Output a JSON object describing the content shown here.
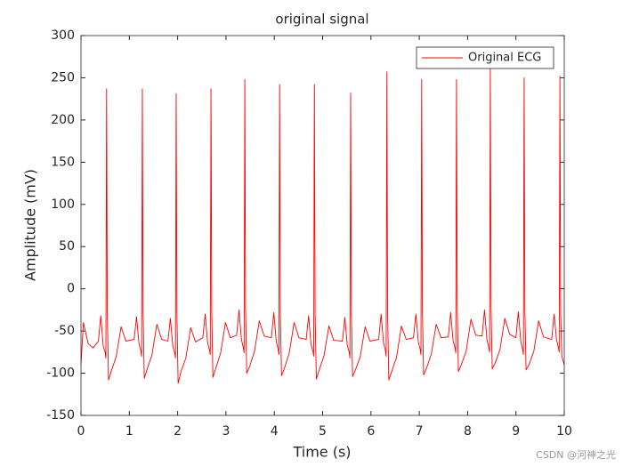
{
  "chart_data": {
    "type": "line",
    "title": "original signal",
    "xlabel": "Time (s)",
    "ylabel": "Amplitude (mV)",
    "x": [
      0,
      0.05,
      0.15,
      0.25,
      0.36,
      0.41,
      0.46,
      0.5,
      0.515,
      0.53,
      0.545,
      0.57,
      0.63,
      0.73,
      0.83,
      0.93,
      1.1,
      1.15,
      1.2,
      1.24,
      1.255,
      1.27,
      1.285,
      1.31,
      1.37,
      1.47,
      1.57,
      1.67,
      1.8,
      1.85,
      1.9,
      1.94,
      1.955,
      1.97,
      1.985,
      2.01,
      2.07,
      2.17,
      2.27,
      2.37,
      2.52,
      2.57,
      2.62,
      2.66,
      2.675,
      2.69,
      2.705,
      2.73,
      2.79,
      2.89,
      2.99,
      3.09,
      3.22,
      3.27,
      3.32,
      3.36,
      3.375,
      3.39,
      3.405,
      3.43,
      3.49,
      3.59,
      3.69,
      3.79,
      3.94,
      3.99,
      4.04,
      4.08,
      4.095,
      4.11,
      4.125,
      4.15,
      4.21,
      4.31,
      4.41,
      4.51,
      4.66,
      4.71,
      4.76,
      4.8,
      4.815,
      4.83,
      4.845,
      4.87,
      4.93,
      5.03,
      5.13,
      5.23,
      5.41,
      5.46,
      5.51,
      5.55,
      5.565,
      5.58,
      5.595,
      5.62,
      5.68,
      5.78,
      5.88,
      5.98,
      6.16,
      6.21,
      6.26,
      6.3,
      6.315,
      6.33,
      6.345,
      6.37,
      6.43,
      6.53,
      6.63,
      6.73,
      6.88,
      6.93,
      6.98,
      7.02,
      7.035,
      7.05,
      7.065,
      7.09,
      7.15,
      7.25,
      7.35,
      7.45,
      7.6,
      7.65,
      7.7,
      7.74,
      7.755,
      7.77,
      7.785,
      7.81,
      7.87,
      7.97,
      8.07,
      8.17,
      8.3,
      8.35,
      8.4,
      8.44,
      8.455,
      8.47,
      8.485,
      8.51,
      8.57,
      8.67,
      8.77,
      8.87,
      9.0,
      9.05,
      9.1,
      9.14,
      9.155,
      9.17,
      9.185,
      9.21,
      9.27,
      9.37,
      9.47,
      9.57,
      9.74,
      9.79,
      9.84,
      9.88,
      9.895,
      9.91,
      9.925,
      9.95,
      10.0
    ],
    "series": [
      {
        "name": "Original ECG",
        "color": "#ff0000",
        "values": [
          -90,
          -40,
          -65,
          -70,
          -62,
          -32,
          -68,
          -75,
          -82,
          237,
          -30,
          -108,
          -97,
          -80,
          -45,
          -62,
          -60,
          -33,
          -65,
          -74,
          -80,
          237,
          -28,
          -106,
          -95,
          -78,
          -42,
          -60,
          -62,
          -35,
          -68,
          -76,
          -82,
          231,
          -30,
          -112,
          -98,
          -82,
          -46,
          -63,
          -58,
          -30,
          -64,
          -73,
          -78,
          237,
          -26,
          -105,
          -94,
          -76,
          -40,
          -58,
          -55,
          -25,
          -60,
          -70,
          -76,
          248,
          -24,
          -100,
          -92,
          -74,
          -38,
          -56,
          -58,
          -28,
          -62,
          -72,
          -78,
          242,
          -28,
          -103,
          -94,
          -76,
          -40,
          -58,
          -60,
          -32,
          -66,
          -74,
          -80,
          242,
          -30,
          -107,
          -96,
          -79,
          -44,
          -61,
          -62,
          -34,
          -67,
          -75,
          -82,
          232,
          -30,
          -104,
          -96,
          -80,
          -45,
          -62,
          -60,
          -30,
          -64,
          -73,
          -80,
          257,
          -28,
          -108,
          -98,
          -81,
          -44,
          -60,
          -58,
          -30,
          -63,
          -72,
          -78,
          248,
          -26,
          -102,
          -94,
          -77,
          -42,
          -58,
          -57,
          -28,
          -62,
          -70,
          -76,
          248,
          -24,
          -98,
          -90,
          -74,
          -36,
          -55,
          -56,
          -25,
          -60,
          -70,
          -75,
          262,
          -22,
          -95,
          -88,
          -72,
          -35,
          -54,
          -58,
          -27,
          -62,
          -72,
          -78,
          250,
          -26,
          -96,
          -90,
          -74,
          -38,
          -57,
          -60,
          -30,
          -60,
          -70,
          -75,
          252,
          -30,
          -80,
          -90
        ]
      }
    ],
    "xlim": [
      0,
      10
    ],
    "ylim": [
      -150,
      300
    ],
    "xticks": [
      0,
      1,
      2,
      3,
      4,
      5,
      6,
      7,
      8,
      9,
      10
    ],
    "yticks": [
      -150,
      -100,
      -50,
      0,
      50,
      100,
      150,
      200,
      250,
      300
    ],
    "legend": "northeast",
    "grid": false,
    "box": true,
    "watermark": "CSDN @河神之光"
  }
}
